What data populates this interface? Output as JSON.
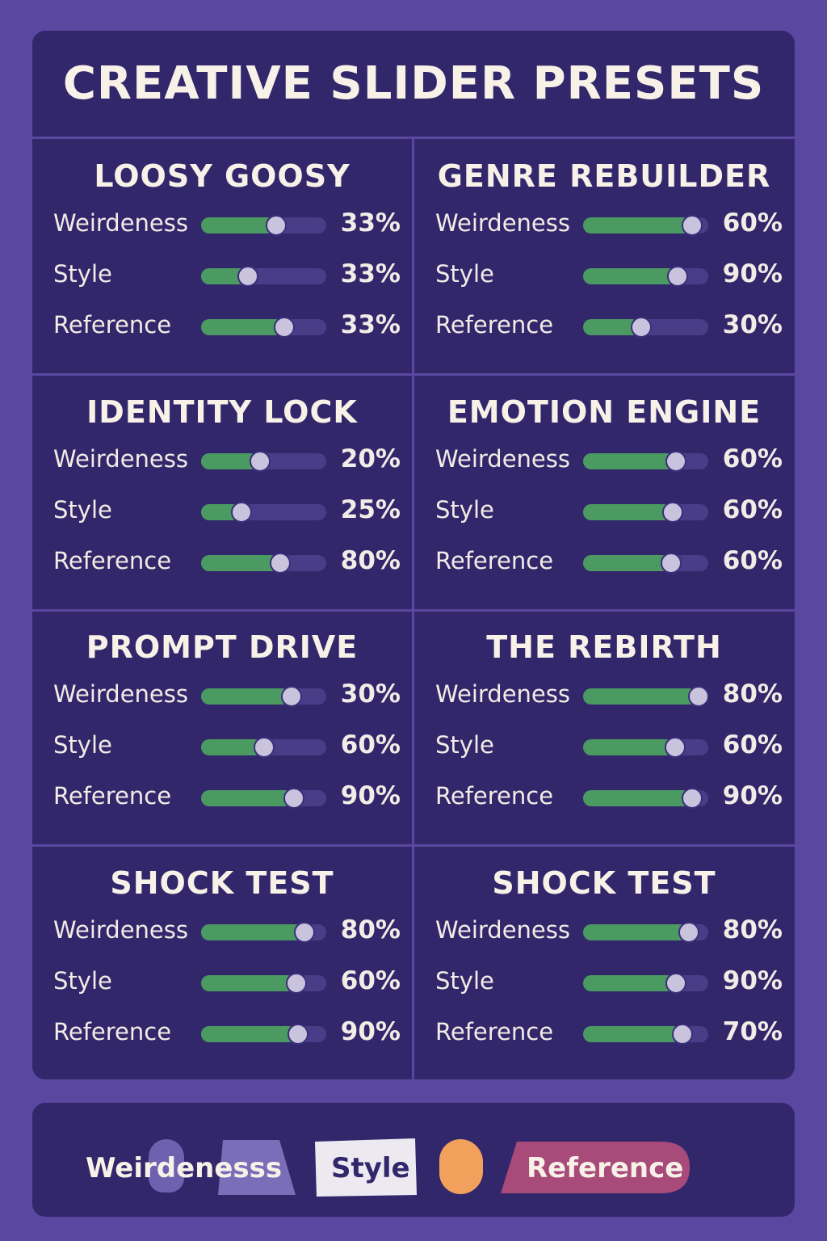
{
  "title": "CREATIVE SLIDER PRESETS",
  "colors": {
    "background": "#5a479f",
    "card": "#33276c",
    "fill": "#4a9a61",
    "track": "#4a3d88",
    "knob": "#c9c3dd",
    "orange": "#f2a15c",
    "pink": "#a84b7a"
  },
  "presets": [
    {
      "name": "LOOSY GOOSY",
      "rows": [
        {
          "label": "Weirdeness",
          "value": "33%",
          "level": 0.59
        },
        {
          "label": "Style",
          "value": "33%",
          "level": 0.36
        },
        {
          "label": "Reference",
          "value": "33%",
          "level": 0.65
        }
      ]
    },
    {
      "name": "GENRE REBUILDER",
      "rows": [
        {
          "label": "Weirdeness",
          "value": "60%",
          "level": 0.86
        },
        {
          "label": "Style",
          "value": "90%",
          "level": 0.74
        },
        {
          "label": "Reference",
          "value": "30%",
          "level": 0.45
        }
      ]
    },
    {
      "name": "IDENTITY LOCK",
      "rows": [
        {
          "label": "Weirdeness",
          "value": "20%",
          "level": 0.46
        },
        {
          "label": "Style",
          "value": "25%",
          "level": 0.31
        },
        {
          "label": "Reference",
          "value": "80%",
          "level": 0.62
        }
      ]
    },
    {
      "name": "EMOTION ENGINE",
      "rows": [
        {
          "label": "Weirdeness",
          "value": "60%",
          "level": 0.73
        },
        {
          "label": "Style",
          "value": "60%",
          "level": 0.7
        },
        {
          "label": "Reference",
          "value": "60%",
          "level": 0.69
        }
      ]
    },
    {
      "name": "PROMPT DRIVE",
      "rows": [
        {
          "label": "Weirdeness",
          "value": "30%",
          "level": 0.71
        },
        {
          "label": "Style",
          "value": "60%",
          "level": 0.49
        },
        {
          "label": "Reference",
          "value": "90%",
          "level": 0.73
        }
      ]
    },
    {
      "name": "THE REBIRTH",
      "rows": [
        {
          "label": "Weirdeness",
          "value": "80%",
          "level": 0.91
        },
        {
          "label": "Style",
          "value": "60%",
          "level": 0.72
        },
        {
          "label": "Reference",
          "value": "90%",
          "level": 0.86
        }
      ]
    },
    {
      "name": "SHOCK TEST",
      "rows": [
        {
          "label": "Weirdeness",
          "value": "80%",
          "level": 0.81
        },
        {
          "label": "Style",
          "value": "60%",
          "level": 0.75
        },
        {
          "label": "Reference",
          "value": "90%",
          "level": 0.76
        }
      ]
    },
    {
      "name": "SHOCK TEST",
      "rows": [
        {
          "label": "Weirdeness",
          "value": "80%",
          "level": 0.83
        },
        {
          "label": "Style",
          "value": "90%",
          "level": 0.73
        },
        {
          "label": "Reference",
          "value": "70%",
          "level": 0.78
        }
      ]
    }
  ],
  "legend": {
    "weirdness": "Weirdenesss",
    "style": "Style",
    "reference": "Reference"
  }
}
